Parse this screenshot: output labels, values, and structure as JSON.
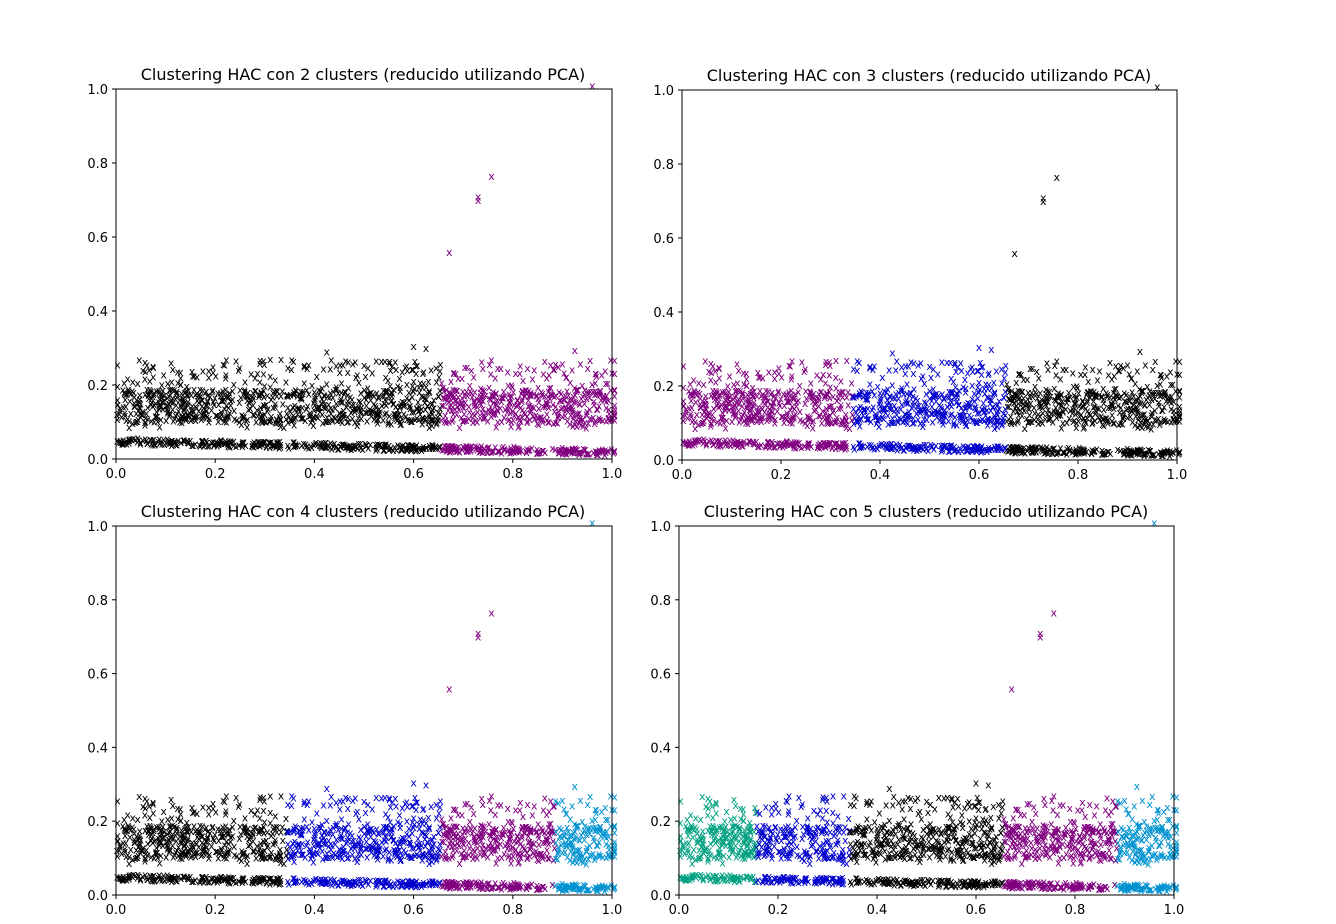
{
  "chart_data": [
    {
      "type": "scatter",
      "title": "Clustering HAC con 2 clusters (reducido utilizando PCA)",
      "xlim": [
        0,
        1
      ],
      "ylim": [
        0,
        1
      ],
      "xticks": [
        "0.0",
        "0.2",
        "0.4",
        "0.6",
        "0.8",
        "1.0"
      ],
      "yticks": [
        "0.0",
        "0.2",
        "0.4",
        "0.6",
        "0.8",
        "1.0"
      ],
      "marker": "x",
      "grid": false,
      "bands": [
        {
          "color": "#000000",
          "x": [
            0.0,
            0.655
          ]
        },
        {
          "color": "#800080",
          "x": [
            0.655,
            1.0
          ]
        }
      ],
      "outliers": [
        {
          "x": 0.672,
          "y": 0.56,
          "color": "#800080"
        },
        {
          "x": 0.73,
          "y": 0.7,
          "color": "#800080"
        },
        {
          "x": 0.73,
          "y": 0.71,
          "color": "#800080"
        },
        {
          "x": 0.757,
          "y": 0.765,
          "color": "#800080"
        },
        {
          "x": 0.96,
          "y": 1.01,
          "color": "#800080"
        },
        {
          "x": 0.925,
          "y": 0.295,
          "color": "#800080"
        },
        {
          "x": 0.6,
          "y": 0.305,
          "color": "#000000"
        },
        {
          "x": 0.625,
          "y": 0.3,
          "color": "#000000"
        },
        {
          "x": 0.425,
          "y": 0.29,
          "color": "#000000"
        }
      ]
    },
    {
      "type": "scatter",
      "title": "Clustering HAC con 3 clusters (reducido utilizando PCA)",
      "xlim": [
        0,
        1
      ],
      "ylim": [
        0,
        1
      ],
      "xticks": [
        "0.0",
        "0.2",
        "0.4",
        "0.6",
        "0.8",
        "1.0"
      ],
      "yticks": [
        "0.0",
        "0.2",
        "0.4",
        "0.6",
        "0.8",
        "1.0"
      ],
      "marker": "x",
      "grid": false,
      "bands": [
        {
          "color": "#800080",
          "x": [
            0.0,
            0.345
          ]
        },
        {
          "color": "#0000cc",
          "x": [
            0.345,
            0.655
          ]
        },
        {
          "color": "#000000",
          "x": [
            0.655,
            1.0
          ]
        }
      ],
      "outliers": [
        {
          "x": 0.672,
          "y": 0.56,
          "color": "#000000"
        },
        {
          "x": 0.73,
          "y": 0.7,
          "color": "#000000"
        },
        {
          "x": 0.73,
          "y": 0.71,
          "color": "#000000"
        },
        {
          "x": 0.757,
          "y": 0.765,
          "color": "#000000"
        },
        {
          "x": 0.96,
          "y": 1.01,
          "color": "#000000"
        },
        {
          "x": 0.925,
          "y": 0.295,
          "color": "#000000"
        },
        {
          "x": 0.6,
          "y": 0.305,
          "color": "#0000cc"
        },
        {
          "x": 0.625,
          "y": 0.3,
          "color": "#0000cc"
        },
        {
          "x": 0.425,
          "y": 0.29,
          "color": "#0000cc"
        }
      ]
    },
    {
      "type": "scatter",
      "title": "Clustering HAC con 4 clusters (reducido utilizando PCA)",
      "xlim": [
        0,
        1
      ],
      "ylim": [
        0,
        1
      ],
      "xticks": [
        "0.0",
        "0.2",
        "0.4",
        "0.6",
        "0.8",
        "1.0"
      ],
      "yticks": [
        "0.0",
        "0.2",
        "0.4",
        "0.6",
        "0.8",
        "1.0"
      ],
      "marker": "x",
      "grid": false,
      "bands": [
        {
          "color": "#000000",
          "x": [
            0.0,
            0.345
          ]
        },
        {
          "color": "#0000cc",
          "x": [
            0.345,
            0.655
          ]
        },
        {
          "color": "#800080",
          "x": [
            0.655,
            0.885
          ]
        },
        {
          "color": "#0092d0",
          "x": [
            0.885,
            1.0
          ]
        }
      ],
      "outliers": [
        {
          "x": 0.672,
          "y": 0.56,
          "color": "#800080"
        },
        {
          "x": 0.73,
          "y": 0.7,
          "color": "#800080"
        },
        {
          "x": 0.73,
          "y": 0.71,
          "color": "#800080"
        },
        {
          "x": 0.757,
          "y": 0.765,
          "color": "#800080"
        },
        {
          "x": 0.96,
          "y": 1.01,
          "color": "#0092d0"
        },
        {
          "x": 0.925,
          "y": 0.295,
          "color": "#0092d0"
        },
        {
          "x": 0.6,
          "y": 0.305,
          "color": "#0000cc"
        },
        {
          "x": 0.625,
          "y": 0.3,
          "color": "#0000cc"
        },
        {
          "x": 0.425,
          "y": 0.29,
          "color": "#0000cc"
        }
      ]
    },
    {
      "type": "scatter",
      "title": "Clustering HAC con 5 clusters (reducido utilizando PCA)",
      "xlim": [
        0,
        1
      ],
      "ylim": [
        0,
        1
      ],
      "xticks": [
        "0.0",
        "0.2",
        "0.4",
        "0.6",
        "0.8",
        "1.0"
      ],
      "yticks": [
        "0.0",
        "0.2",
        "0.4",
        "0.6",
        "0.8",
        "1.0"
      ],
      "marker": "x",
      "grid": false,
      "bands": [
        {
          "color": "#00a080",
          "x": [
            0.0,
            0.155
          ]
        },
        {
          "color": "#0000cc",
          "x": [
            0.155,
            0.345
          ]
        },
        {
          "color": "#000000",
          "x": [
            0.345,
            0.655
          ]
        },
        {
          "color": "#800080",
          "x": [
            0.655,
            0.885
          ]
        },
        {
          "color": "#0092d0",
          "x": [
            0.885,
            1.0
          ]
        }
      ],
      "outliers": [
        {
          "x": 0.672,
          "y": 0.56,
          "color": "#800080"
        },
        {
          "x": 0.73,
          "y": 0.7,
          "color": "#800080"
        },
        {
          "x": 0.73,
          "y": 0.71,
          "color": "#800080"
        },
        {
          "x": 0.757,
          "y": 0.765,
          "color": "#800080"
        },
        {
          "x": 0.96,
          "y": 1.01,
          "color": "#0092d0"
        },
        {
          "x": 0.925,
          "y": 0.295,
          "color": "#0092d0"
        },
        {
          "x": 0.6,
          "y": 0.305,
          "color": "#000000"
        },
        {
          "x": 0.625,
          "y": 0.3,
          "color": "#000000"
        },
        {
          "x": 0.425,
          "y": 0.29,
          "color": "#000000"
        }
      ]
    }
  ]
}
